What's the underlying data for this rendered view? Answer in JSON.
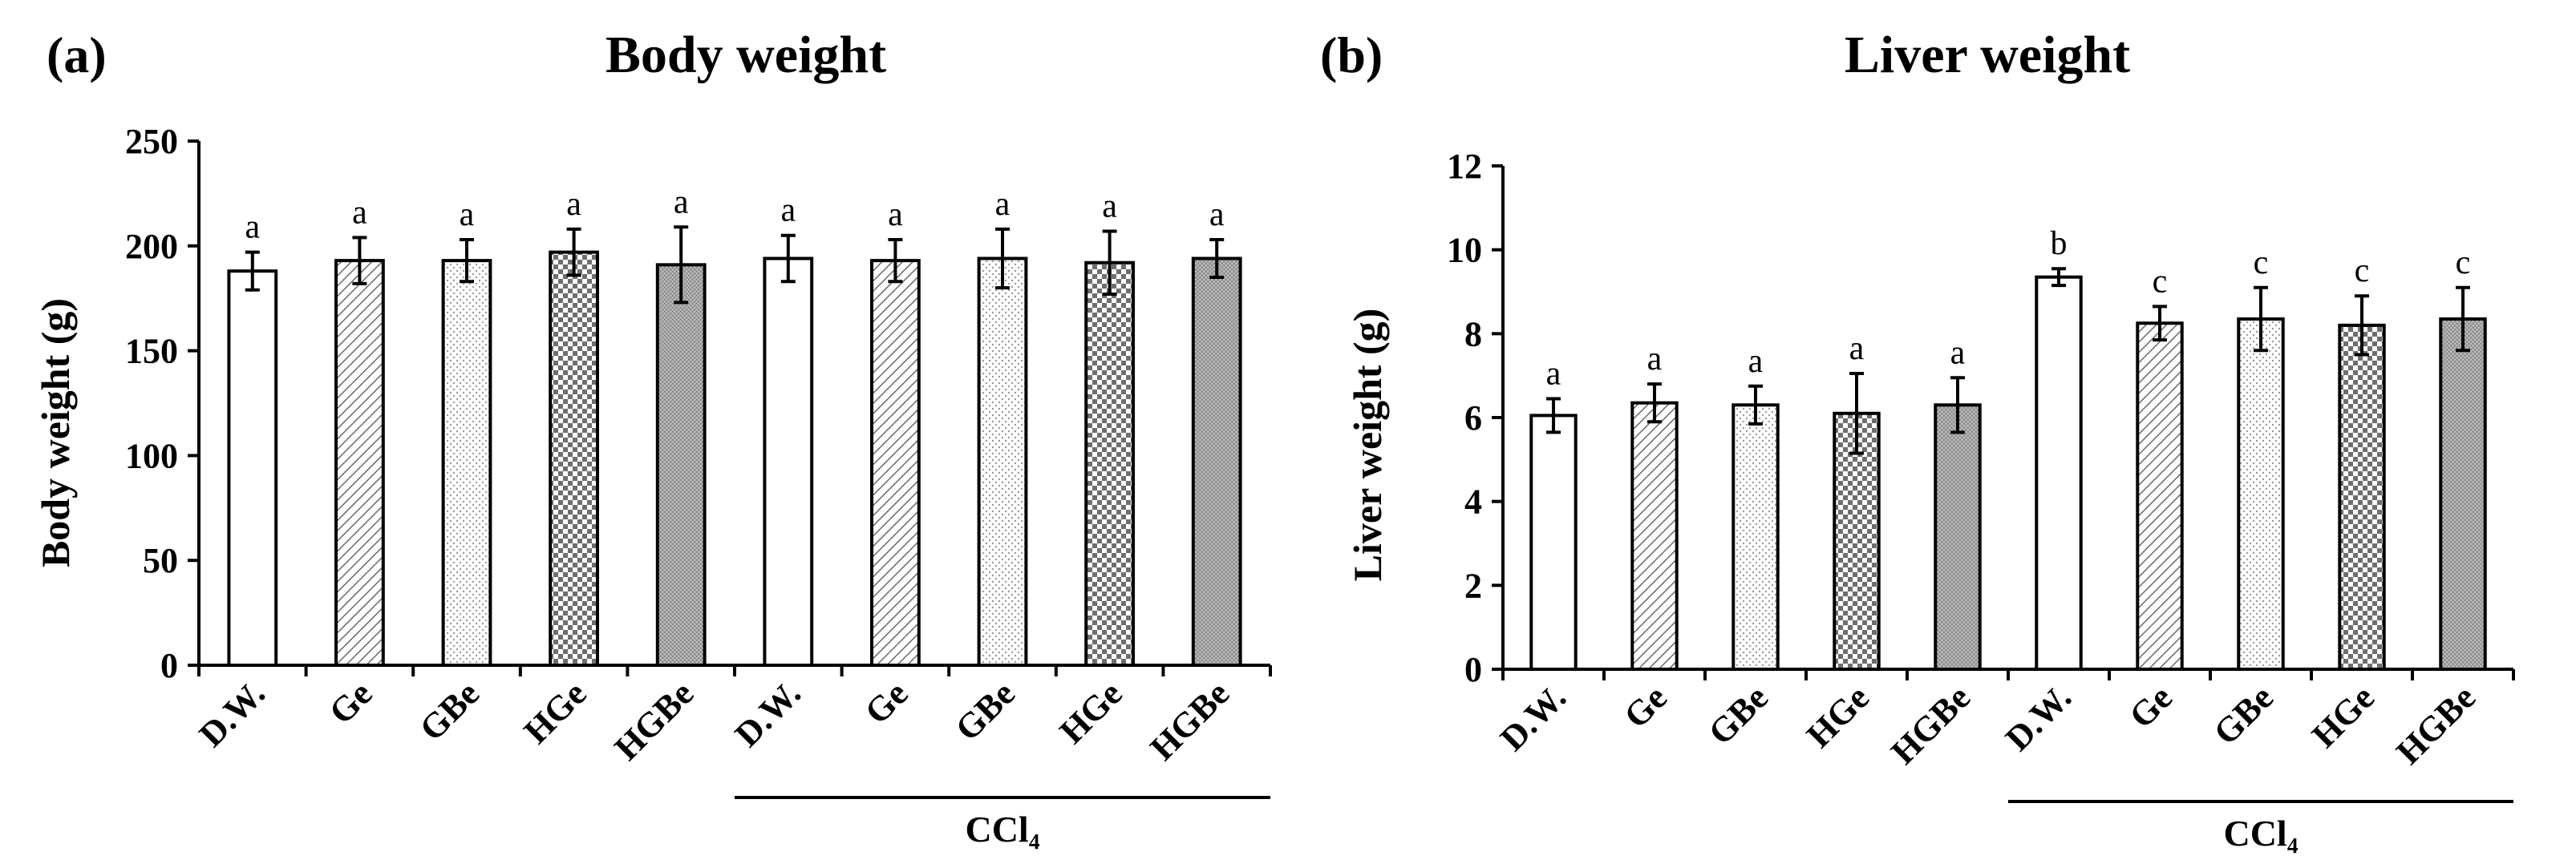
{
  "chart_data": [
    {
      "type": "bar",
      "panel_label": "(a)",
      "title": "Body weight",
      "xlabel": "",
      "ylabel": "Body weight (g)",
      "ylim": [
        0,
        250
      ],
      "yticks": [
        0,
        50,
        100,
        150,
        200,
        250
      ],
      "categories": [
        "D.W.",
        "Ge",
        "GBe",
        "HGe",
        "HGBe",
        "D.W.",
        "Ge",
        "GBe",
        "HGe",
        "HGBe"
      ],
      "patterns": [
        "plain",
        "diagonal",
        "dots",
        "checker",
        "fine",
        "plain",
        "diagonal",
        "dots",
        "checker",
        "fine"
      ],
      "values": [
        188,
        193,
        193,
        197,
        191,
        194,
        193,
        194,
        192,
        194
      ],
      "errors": [
        9,
        11,
        10,
        11,
        18,
        11,
        10,
        14,
        15,
        9
      ],
      "significance": [
        "a",
        "a",
        "a",
        "a",
        "a",
        "a",
        "a",
        "a",
        "a",
        "a"
      ],
      "group_label": "CCl₄",
      "group_span": [
        5,
        9
      ],
      "grid": false
    },
    {
      "type": "bar",
      "panel_label": "(b)",
      "title": "Liver weight",
      "xlabel": "",
      "ylabel": "Liver weight (g)",
      "ylim": [
        0,
        12
      ],
      "yticks": [
        0,
        2,
        4,
        6,
        8,
        10,
        12
      ],
      "categories": [
        "D.W.",
        "Ge",
        "GBe",
        "HGe",
        "HGBe",
        "D.W.",
        "Ge",
        "GBe",
        "HGe",
        "HGBe"
      ],
      "patterns": [
        "plain",
        "diagonal",
        "dots",
        "checker",
        "fine",
        "plain",
        "diagonal",
        "dots",
        "checker",
        "fine"
      ],
      "values": [
        6.05,
        6.35,
        6.3,
        6.1,
        6.3,
        9.35,
        8.25,
        8.35,
        8.2,
        8.35
      ],
      "errors": [
        0.4,
        0.45,
        0.45,
        0.95,
        0.65,
        0.2,
        0.4,
        0.75,
        0.7,
        0.75
      ],
      "significance": [
        "a",
        "a",
        "a",
        "a",
        "a",
        "b",
        "c",
        "c",
        "c",
        "c"
      ],
      "group_label": "CCl₄",
      "group_span": [
        5,
        9
      ],
      "grid": false
    }
  ]
}
